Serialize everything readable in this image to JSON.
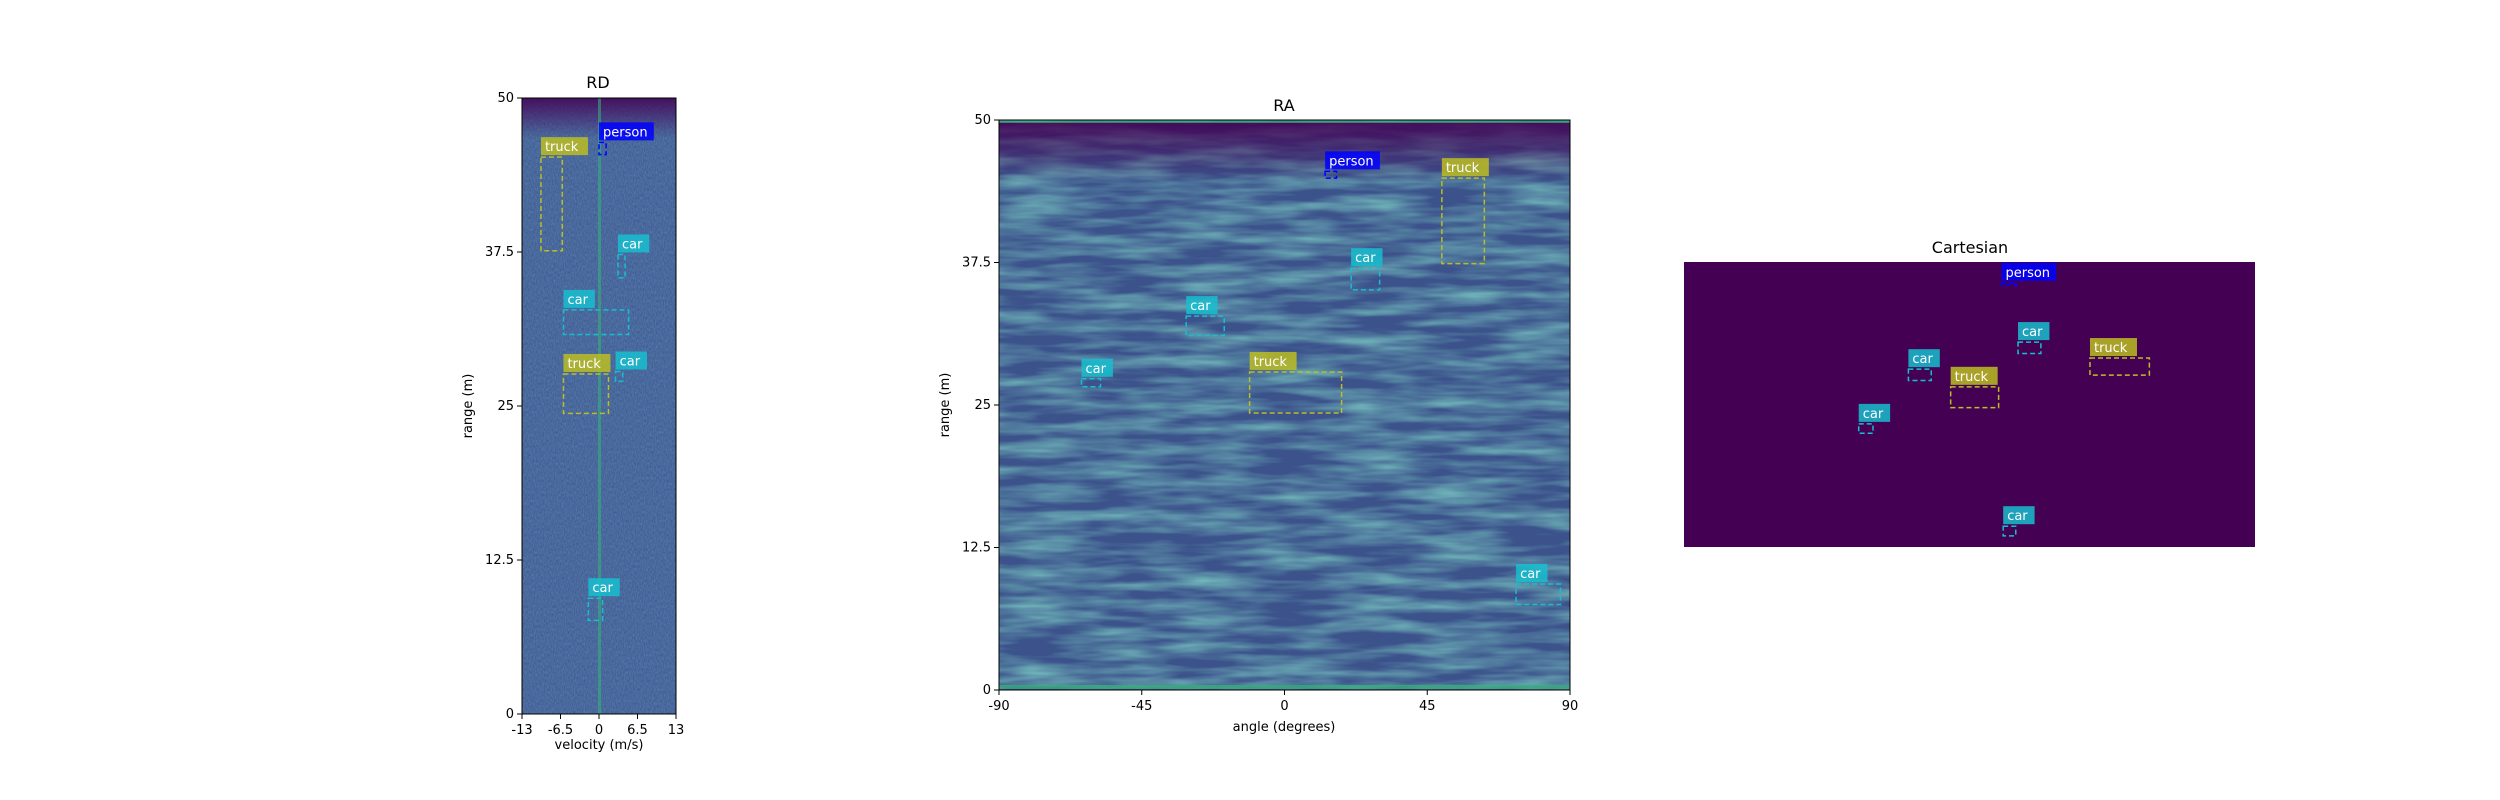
{
  "colors": {
    "car": "#17becf",
    "truck": "#bcbd22",
    "person": "#0000ff",
    "bg_dark": "#440154",
    "bg_mid": "#3b528b"
  },
  "chart_data": [
    {
      "id": "rd",
      "type": "heatmap",
      "title": "RD",
      "xlabel": "velocity (m/s)",
      "ylabel": "range (m)",
      "xlim": [
        -13,
        13
      ],
      "ylim": [
        0,
        50
      ],
      "xticks": [
        "-13",
        "-6.5",
        "0",
        "6.5",
        "13"
      ],
      "yticks": [
        "0",
        "12.5",
        "25",
        "37.5",
        "50"
      ],
      "detections": [
        {
          "label": "truck",
          "x": [
            -9.8,
            -6.2
          ],
          "y": [
            37.6,
            45.2
          ]
        },
        {
          "label": "person",
          "x": [
            0.0,
            1.2
          ],
          "y": [
            45.4,
            46.4
          ]
        },
        {
          "label": "car",
          "x": [
            3.2,
            4.4
          ],
          "y": [
            35.4,
            37.3
          ]
        },
        {
          "label": "car",
          "x": [
            -6.0,
            5.0
          ],
          "y": [
            30.8,
            32.8
          ]
        },
        {
          "label": "truck",
          "x": [
            -6.0,
            1.6
          ],
          "y": [
            24.4,
            27.6
          ]
        },
        {
          "label": "car",
          "x": [
            2.8,
            4.0
          ],
          "y": [
            27.0,
            27.8
          ]
        },
        {
          "label": "car",
          "x": [
            -1.8,
            0.6
          ],
          "y": [
            7.6,
            9.4
          ]
        }
      ]
    },
    {
      "id": "ra",
      "type": "heatmap",
      "title": "RA",
      "xlabel": "angle (degrees)",
      "ylabel": "range (m)",
      "xlim": [
        -90,
        90
      ],
      "ylim": [
        0,
        50
      ],
      "xticks": [
        "-90",
        "-45",
        "0",
        "45",
        "90"
      ],
      "yticks": [
        "0",
        "12.5",
        "25",
        "37.5",
        "50"
      ],
      "detections": [
        {
          "label": "person",
          "x": [
            12.8,
            16.4
          ],
          "y": [
            44.9,
            45.5
          ]
        },
        {
          "label": "truck",
          "x": [
            49.6,
            63.0
          ],
          "y": [
            37.4,
            44.9
          ]
        },
        {
          "label": "car",
          "x": [
            21.0,
            30.0
          ],
          "y": [
            35.1,
            37.0
          ]
        },
        {
          "label": "car",
          "x": [
            -31.0,
            -19.0
          ],
          "y": [
            31.1,
            32.8
          ]
        },
        {
          "label": "car",
          "x": [
            -64.0,
            -58.0
          ],
          "y": [
            26.6,
            27.3
          ]
        },
        {
          "label": "truck",
          "x": [
            -11.0,
            18.0
          ],
          "y": [
            24.3,
            27.9
          ]
        },
        {
          "label": "car",
          "x": [
            73.0,
            87.0
          ],
          "y": [
            7.5,
            9.3
          ]
        }
      ]
    },
    {
      "id": "cartesian",
      "type": "heatmap",
      "title": "Cartesian",
      "detections": [
        {
          "label": "person",
          "x": [
            0.556,
            0.583
          ],
          "y": [
            0.919,
            0.927
          ]
        },
        {
          "label": "car",
          "x": [
            0.585,
            0.625
          ],
          "y": [
            0.679,
            0.719
          ]
        },
        {
          "label": "truck",
          "x": [
            0.711,
            0.815
          ],
          "y": [
            0.603,
            0.663
          ]
        },
        {
          "label": "car",
          "x": [
            0.393,
            0.433
          ],
          "y": [
            0.584,
            0.624
          ]
        },
        {
          "label": "truck",
          "x": [
            0.467,
            0.551
          ],
          "y": [
            0.489,
            0.562
          ]
        },
        {
          "label": "car",
          "x": [
            0.306,
            0.331
          ],
          "y": [
            0.399,
            0.432
          ]
        },
        {
          "label": "car",
          "x": [
            0.559,
            0.581
          ],
          "y": [
            0.039,
            0.073
          ]
        }
      ]
    }
  ]
}
